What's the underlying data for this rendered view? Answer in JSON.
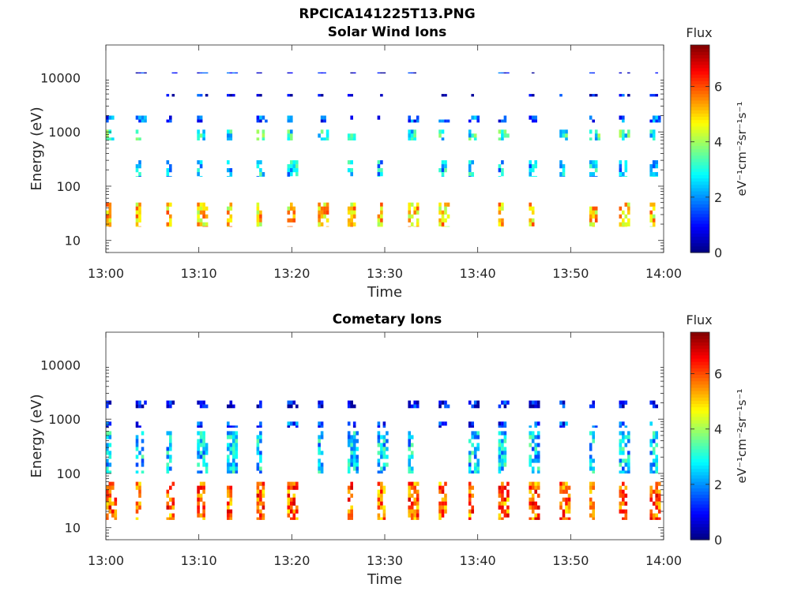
{
  "figure": {
    "filename": "RPCICA141225T13.PNG"
  },
  "chart_data": [
    {
      "type": "heatmap",
      "title": "Solar Wind Ions",
      "xlabel": "Time",
      "ylabel": "Energy (eV)",
      "x_ticks": [
        "13:00",
        "13:10",
        "13:20",
        "13:30",
        "13:40",
        "13:50",
        "14:00"
      ],
      "y_ticks": [
        "10",
        "100",
        "1000",
        "10000"
      ],
      "y_scale": "log",
      "ylim": [
        6,
        40000
      ],
      "xlim": [
        "13:00",
        "14:00"
      ],
      "grid": false,
      "colorbar": {
        "title": "Flux",
        "label": "eV⁻¹cm⁻²sr⁻¹s⁻¹",
        "range": [
          0,
          7.5
        ],
        "ticks": [
          "0",
          "2",
          "4",
          "6"
        ],
        "colormap": "jet"
      },
      "x_sweep_minutes": [
        0,
        3.2,
        6.5,
        9.8,
        13.0,
        16.2,
        19.5,
        22.8,
        26.0,
        29.2,
        32.5,
        35.8,
        39.0,
        42.2,
        45.5,
        48.8,
        52.0,
        55.2,
        58.5
      ],
      "bands": [
        {
          "energy_low": 12000,
          "energy_high": 12500,
          "flux": 1.0
        },
        {
          "energy_low": 4500,
          "energy_high": 5000,
          "flux": 0.8
        },
        {
          "energy_low": 1500,
          "energy_high": 2000,
          "flux": 1.5
        },
        {
          "energy_low": 700,
          "energy_high": 1100,
          "flux": 3.0
        },
        {
          "energy_low": 150,
          "energy_high": 300,
          "flux": 2.5
        },
        {
          "energy_low": 18,
          "energy_high": 50,
          "flux": 5.0
        }
      ]
    },
    {
      "type": "heatmap",
      "title": "Cometary Ions",
      "xlabel": "Time",
      "ylabel": "Energy (eV)",
      "x_ticks": [
        "13:00",
        "13:10",
        "13:20",
        "13:30",
        "13:40",
        "13:50",
        "14:00"
      ],
      "y_ticks": [
        "10",
        "100",
        "1000",
        "10000"
      ],
      "y_scale": "log",
      "ylim": [
        6,
        40000
      ],
      "xlim": [
        "13:00",
        "14:00"
      ],
      "grid": false,
      "colorbar": {
        "title": "Flux",
        "label": "eV⁻¹cm⁻²sr⁻¹s⁻¹",
        "range": [
          0,
          7.5
        ],
        "ticks": [
          "0",
          "2",
          "4",
          "6"
        ],
        "colormap": "jet"
      },
      "x_sweep_minutes": [
        0,
        3.2,
        6.5,
        9.8,
        13.0,
        16.2,
        19.5,
        22.8,
        26.0,
        29.2,
        32.5,
        35.8,
        39.0,
        42.2,
        45.5,
        48.8,
        52.0,
        55.2,
        58.5
      ],
      "bands": [
        {
          "energy_low": 1600,
          "energy_high": 2200,
          "flux": 0.8
        },
        {
          "energy_low": 700,
          "energy_high": 900,
          "flux": 1.5
        },
        {
          "energy_low": 100,
          "energy_high": 600,
          "flux": 2.5
        },
        {
          "energy_low": 14,
          "energy_high": 70,
          "flux": 5.8
        }
      ]
    }
  ]
}
